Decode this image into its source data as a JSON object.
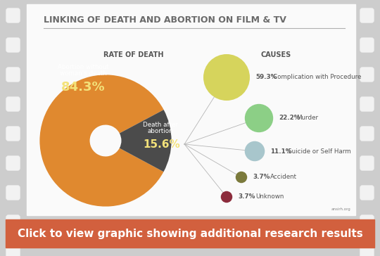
{
  "title": "LINKING OF DEATH AND ABORTION ON FILM & TV",
  "source": "ansirh.org",
  "footer": "Click to view graphic showing additional research results",
  "chart_data": [
    {
      "type": "pie",
      "title": "RATE OF DEATH",
      "categories": [
        "Abortion without woman's death",
        "Death after abortion"
      ],
      "values": [
        84.3,
        15.6
      ],
      "value_labels": [
        "84.3%",
        "15.6%"
      ],
      "colors": [
        "#e0892f",
        "#4b4b4b"
      ],
      "data_labels": true
    },
    {
      "type": "bubble",
      "title": "CAUSES",
      "categories": [
        "Complication with Procedure",
        "Murder",
        "Suicide or Self Harm",
        "Accident",
        "Unknown"
      ],
      "values": [
        59.3,
        22.2,
        11.1,
        3.7,
        3.7
      ],
      "value_labels": [
        "59.3%",
        "22.2%",
        "11.1%",
        "3.7%",
        "3.7%"
      ],
      "colors": [
        "#d6d45c",
        "#8ccf86",
        "#a8c6cc",
        "#7b7a3c",
        "#8c2c3c"
      ],
      "data_labels": true
    }
  ]
}
